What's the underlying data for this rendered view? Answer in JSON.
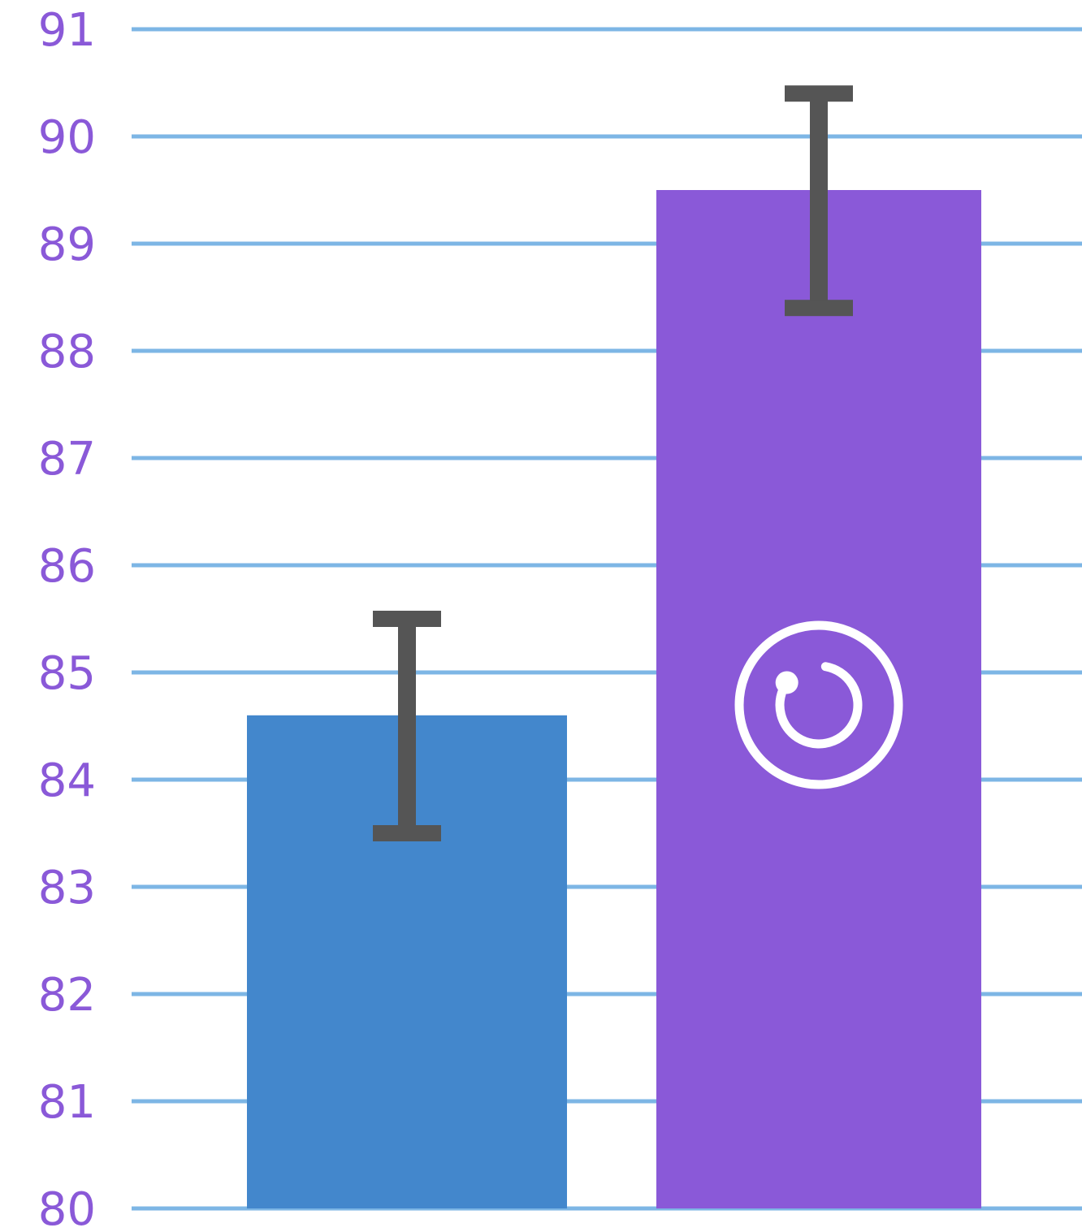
{
  "chart_data": {
    "type": "bar",
    "title": "",
    "xlabel": "",
    "ylabel": "",
    "ylim": [
      80,
      91
    ],
    "yticks": [
      "80",
      "81",
      "82",
      "83",
      "84",
      "85",
      "86",
      "87",
      "88",
      "89",
      "90",
      "91"
    ],
    "grid": true,
    "legend": "none",
    "bars": [
      {
        "value": 84.6,
        "error_low": 83.5,
        "error_high": 85.5,
        "color": "#4387CC"
      },
      {
        "value": 89.5,
        "error_low": 88.4,
        "error_high": 90.4,
        "color": "#8A59D8",
        "icon": "refresh-circle-icon"
      }
    ],
    "colors": {
      "grid": "#7DB6E5",
      "tick_label": "#8A59D8",
      "error_bar": "#555555",
      "icon": "#ffffff"
    }
  }
}
